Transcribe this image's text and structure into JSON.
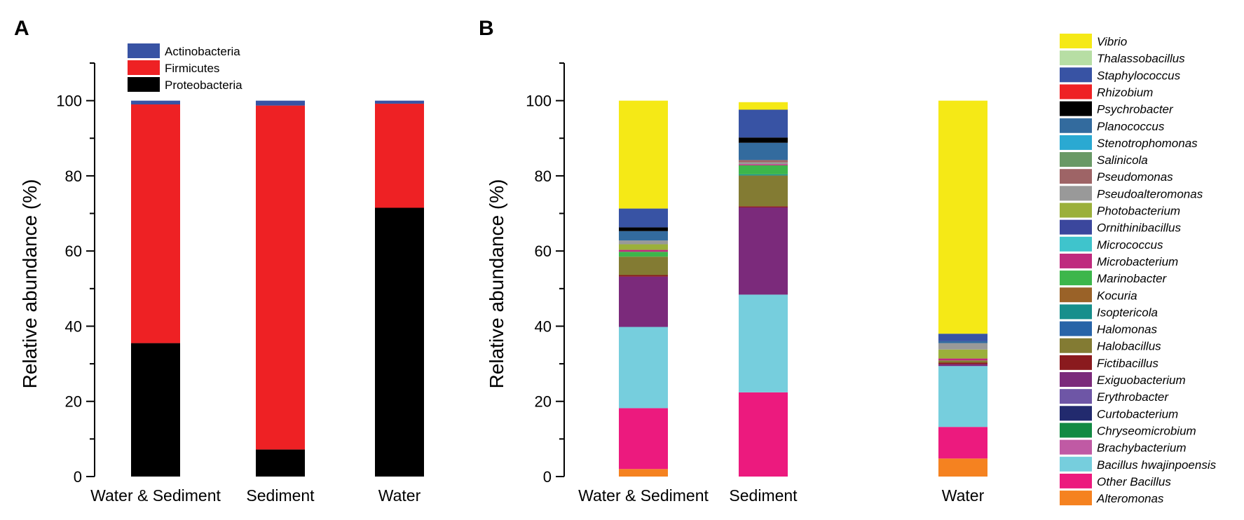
{
  "chart_data": [
    {
      "panel": "A",
      "type": "bar",
      "stacked": true,
      "ylabel": "Relative abundance (%)",
      "ylim": [
        0,
        110
      ],
      "yticks": [
        0,
        20,
        40,
        60,
        80,
        100
      ],
      "categories": [
        "Water & Sediment",
        "Sediment",
        "Water"
      ],
      "legend_position": "top",
      "series": [
        {
          "name": "Proteobacteria",
          "color": "#000000",
          "values": [
            35.5,
            7.2,
            71.5
          ]
        },
        {
          "name": "Firmicutes",
          "color": "#ee2124",
          "values": [
            63.5,
            91.5,
            27.7
          ]
        },
        {
          "name": "Actinobacteria",
          "color": "#3853a4",
          "values": [
            1.0,
            1.3,
            0.8
          ]
        }
      ],
      "legend_order": [
        "Actinobacteria",
        "Firmicutes",
        "Proteobacteria"
      ]
    },
    {
      "panel": "B",
      "type": "bar",
      "stacked": true,
      "ylabel": "Relative abundance (%)",
      "ylim": [
        0,
        110
      ],
      "yticks": [
        0,
        20,
        40,
        60,
        80,
        100
      ],
      "categories": [
        "Water & Sediment",
        "Sediment",
        "Water"
      ],
      "legend_position": "right",
      "series": [
        {
          "name": "Alteromonas",
          "color": "#f58220",
          "values": [
            2.0,
            0.0,
            4.8
          ]
        },
        {
          "name": "Other Bacillus",
          "color": "#ec1a7e",
          "values": [
            16.2,
            22.4,
            8.4
          ]
        },
        {
          "name": "Bacillus hwajinpoensis",
          "color": "#76cedd",
          "values": [
            21.6,
            26.0,
            16.2
          ]
        },
        {
          "name": "Brachybacterium",
          "color": "#c05aa4",
          "values": [
            0.0,
            0.0,
            0.0
          ]
        },
        {
          "name": "Chryseomicrobium",
          "color": "#128a43",
          "values": [
            0.0,
            0.0,
            0.0
          ]
        },
        {
          "name": "Curtobacterium",
          "color": "#222a6e",
          "values": [
            0.0,
            0.0,
            0.0
          ]
        },
        {
          "name": "Erythrobacter",
          "color": "#6e56a6",
          "values": [
            0.0,
            0.0,
            0.0
          ]
        },
        {
          "name": "Exiguobacterium",
          "color": "#7b2a7b",
          "values": [
            13.4,
            23.2,
            0.5
          ]
        },
        {
          "name": "Fictibacillus",
          "color": "#8a1a1e",
          "values": [
            0.4,
            0.3,
            0.4
          ]
        },
        {
          "name": "Halobacillus",
          "color": "#837b33",
          "values": [
            4.9,
            8.2,
            0.6
          ]
        },
        {
          "name": "Halomonas",
          "color": "#2864a8",
          "values": [
            0.0,
            0.0,
            0.0
          ]
        },
        {
          "name": "Isoptericola",
          "color": "#178f8c",
          "values": [
            0.0,
            0.3,
            0.0
          ]
        },
        {
          "name": "Kocuria",
          "color": "#9a6228",
          "values": [
            0.0,
            0.0,
            0.0
          ]
        },
        {
          "name": "Marinobacter",
          "color": "#3db64b",
          "values": [
            1.3,
            2.4,
            0.0
          ]
        },
        {
          "name": "Microbacterium",
          "color": "#bf2a7e",
          "values": [
            0.5,
            0.3,
            0.5
          ]
        },
        {
          "name": "Micrococcus",
          "color": "#3fc4cc",
          "values": [
            0.0,
            0.0,
            0.0
          ]
        },
        {
          "name": "Ornithinibacillus",
          "color": "#3b479d",
          "values": [
            0.0,
            0.0,
            0.0
          ]
        },
        {
          "name": "Photobacterium",
          "color": "#9bb03b",
          "values": [
            1.5,
            0.0,
            2.4
          ]
        },
        {
          "name": "Pseudoalteromonas",
          "color": "#999999",
          "values": [
            1.0,
            0.5,
            1.7
          ]
        },
        {
          "name": "Pseudomonas",
          "color": "#9e6466",
          "values": [
            0.0,
            0.6,
            0.0
          ]
        },
        {
          "name": "Salinicola",
          "color": "#699966",
          "values": [
            0.0,
            0.0,
            0.0
          ]
        },
        {
          "name": "Stenotrophomonas",
          "color": "#2aa9d2",
          "values": [
            0.0,
            0.0,
            0.0
          ]
        },
        {
          "name": "Planococcus",
          "color": "#336b9e",
          "values": [
            2.5,
            4.6,
            0.5
          ]
        },
        {
          "name": "Psychrobacter",
          "color": "#000000",
          "values": [
            1.0,
            1.4,
            0.0
          ]
        },
        {
          "name": "Rhizobium",
          "color": "#ee2124",
          "values": [
            0.0,
            0.0,
            0.0
          ]
        },
        {
          "name": "Staphylococcus",
          "color": "#3853a4",
          "values": [
            5.0,
            7.4,
            2.0
          ]
        },
        {
          "name": "Thalassobacillus",
          "color": "#b7dea4",
          "values": [
            0.0,
            0.0,
            0.0
          ]
        },
        {
          "name": "Vibrio",
          "color": "#f5e916",
          "values": [
            28.7,
            2.0,
            62.0
          ]
        }
      ],
      "legend_order": [
        "Vibrio",
        "Thalassobacillus",
        "Staphylococcus",
        "Rhizobium",
        "Psychrobacter",
        "Planococcus",
        "Stenotrophomonas",
        "Salinicola",
        "Pseudomonas",
        "Pseudoalteromonas",
        "Photobacterium",
        "Ornithinibacillus",
        "Micrococcus",
        "Microbacterium",
        "Marinobacter",
        "Kocuria",
        "Isoptericola",
        "Halomonas",
        "Halobacillus",
        "Fictibacillus",
        "Exiguobacterium",
        "Erythrobacter",
        "Curtobacterium",
        "Chryseomicrobium",
        "Brachybacterium",
        "Bacillus hwajinpoensis",
        "Other Bacillus",
        "Alteromonas"
      ]
    }
  ]
}
